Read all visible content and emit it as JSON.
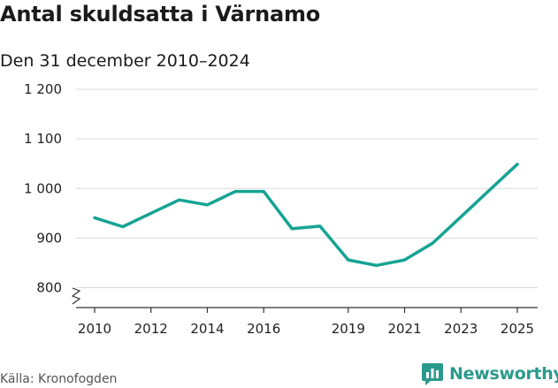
{
  "title": "Antal skuldsatta i Värnamo",
  "subtitle": "Den 31 december 2010–2024",
  "source": {
    "prefix": "Källa:",
    "name": "Kronofogden"
  },
  "brand": {
    "name": "Newsworthy",
    "icon": "newsworthy-logo-icon",
    "color": "#2a9a8c"
  },
  "chart_data": {
    "type": "line",
    "x": [
      2010,
      2011,
      2012,
      2013,
      2014,
      2015,
      2016,
      2017,
      2018,
      2019,
      2020,
      2021,
      2022,
      2023,
      2024,
      2025
    ],
    "series": [
      {
        "values": [
          941,
          923,
          950,
          977,
          967,
          994,
          994,
          919,
          924,
          856,
          845,
          856,
          890,
          943,
          996,
          1049
        ],
        "color": "#16a394"
      }
    ],
    "x_tick_values": [
      2010,
      2012,
      2014,
      2016,
      2019,
      2021,
      2023,
      2025
    ],
    "x_tick_labels": [
      "2010",
      "2012",
      "2014",
      "2016",
      "2019",
      "2021",
      "2023",
      "2025"
    ],
    "y_ticks": [
      800,
      900,
      1000,
      1100,
      1200
    ],
    "y_tick_labels": [
      "800",
      "900",
      "1 000",
      "1 100",
      "1 200"
    ],
    "xlim": [
      2010,
      2025
    ],
    "ylim": [
      760,
      1200
    ],
    "y_axis_break": true,
    "grid": "horizontal",
    "xlabel": "",
    "ylabel": ""
  }
}
